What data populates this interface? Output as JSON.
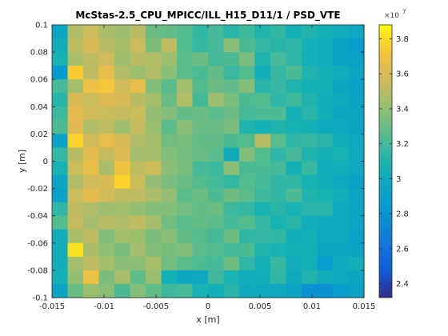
{
  "chart_data": {
    "type": "heatmap",
    "title": "McStas-2.5_CPU_MPICC/ILL_H15_D11/1 / PSD_VTE",
    "xlabel": "x [m]",
    "ylabel": "y [m]",
    "xlim": [
      -0.015,
      0.015
    ],
    "ylim": [
      -0.1,
      0.1
    ],
    "x_ticks": [
      "-0.015",
      "-0.01",
      "-0.005",
      "0",
      "0.005",
      "0.01",
      "0.015"
    ],
    "x_tick_values": [
      -0.015,
      -0.01,
      -0.005,
      0,
      0.005,
      0.01,
      0.015
    ],
    "y_ticks": [
      "0.1",
      "0.08",
      "0.06",
      "0.04",
      "0.02",
      "0",
      "-0.02",
      "-0.04",
      "-0.06",
      "-0.08",
      "-0.1"
    ],
    "y_tick_values": [
      0.1,
      0.08,
      0.06,
      0.04,
      0.02,
      0,
      -0.02,
      -0.04,
      -0.06,
      -0.08,
      -0.1
    ],
    "colorbar": {
      "min": 2.32,
      "max": 3.88,
      "exponent_label": "×10",
      "exponent": "7",
      "ticks": [
        "2.4",
        "2.6",
        "2.8",
        "3",
        "3.2",
        "3.4",
        "3.6",
        "3.8"
      ],
      "tick_values": [
        2.4,
        2.6,
        2.8,
        3.0,
        3.2,
        3.4,
        3.6,
        3.8
      ]
    },
    "rows": 20,
    "cols": 20,
    "values": [
      [
        2.96,
        3.48,
        3.56,
        3.46,
        3.42,
        3.5,
        3.3,
        3.28,
        3.24,
        3.14,
        3.2,
        3.12,
        3.18,
        3.1,
        3.14,
        3.06,
        3.1,
        3.06,
        3.02,
        2.98
      ],
      [
        3.02,
        3.52,
        3.6,
        3.5,
        3.44,
        3.56,
        3.34,
        3.52,
        3.24,
        3.16,
        3.2,
        3.38,
        3.22,
        3.16,
        3.12,
        3.14,
        3.06,
        3.02,
        2.92,
        2.88
      ],
      [
        3.08,
        3.46,
        3.52,
        3.58,
        3.42,
        3.5,
        3.48,
        3.42,
        3.26,
        3.3,
        3.2,
        3.22,
        3.34,
        3.1,
        3.2,
        3.14,
        3.06,
        3.02,
        2.94,
        2.92
      ],
      [
        2.86,
        3.76,
        3.52,
        3.66,
        3.48,
        3.42,
        3.48,
        3.38,
        3.26,
        3.22,
        3.28,
        3.18,
        3.24,
        3.04,
        3.16,
        3.22,
        3.1,
        3.06,
        3.02,
        2.96
      ],
      [
        3.2,
        3.44,
        3.68,
        3.72,
        3.58,
        3.66,
        3.36,
        3.26,
        3.44,
        3.24,
        3.3,
        3.28,
        3.36,
        3.12,
        3.16,
        3.1,
        3.06,
        3.06,
        2.96,
        2.92
      ],
      [
        3.12,
        3.6,
        3.56,
        3.62,
        3.6,
        3.5,
        3.44,
        3.3,
        3.48,
        3.2,
        3.42,
        3.34,
        3.22,
        3.24,
        3.14,
        3.18,
        3.1,
        3.04,
        3.0,
        2.94
      ],
      [
        3.18,
        3.64,
        3.58,
        3.56,
        3.54,
        3.56,
        3.4,
        3.36,
        3.28,
        3.3,
        3.26,
        3.3,
        3.2,
        3.22,
        3.22,
        3.06,
        3.12,
        3.04,
        2.96,
        2.96
      ],
      [
        3.22,
        3.62,
        3.48,
        3.52,
        3.42,
        3.54,
        3.42,
        3.26,
        3.38,
        3.3,
        3.3,
        3.34,
        3.1,
        3.06,
        3.1,
        3.08,
        3.06,
        3.0,
        2.98,
        2.94
      ],
      [
        2.92,
        3.78,
        3.58,
        3.66,
        3.6,
        3.48,
        3.44,
        3.32,
        3.34,
        3.28,
        3.28,
        3.22,
        3.24,
        3.5,
        3.26,
        3.14,
        3.16,
        3.12,
        3.04,
        2.98
      ],
      [
        3.16,
        3.5,
        3.64,
        3.54,
        3.62,
        3.44,
        3.44,
        3.36,
        3.32,
        3.3,
        3.26,
        3.0,
        3.36,
        3.24,
        3.14,
        3.2,
        3.1,
        3.06,
        3.08,
        3.0
      ],
      [
        3.08,
        3.56,
        3.66,
        3.46,
        3.7,
        3.52,
        3.56,
        3.38,
        3.34,
        3.2,
        3.18,
        3.38,
        3.22,
        3.22,
        3.2,
        3.06,
        3.16,
        3.02,
        3.04,
        2.98
      ],
      [
        2.96,
        3.48,
        3.58,
        3.6,
        3.78,
        3.56,
        3.4,
        3.34,
        3.3,
        3.24,
        3.2,
        3.16,
        3.24,
        3.2,
        3.14,
        3.14,
        3.08,
        3.04,
        2.98,
        2.92
      ],
      [
        2.92,
        3.56,
        3.64,
        3.58,
        3.52,
        3.52,
        3.46,
        3.4,
        3.26,
        3.3,
        3.22,
        3.3,
        3.26,
        3.18,
        3.14,
        3.22,
        3.1,
        3.08,
        3.04,
        2.96
      ],
      [
        3.14,
        3.52,
        3.48,
        3.42,
        3.44,
        3.4,
        3.36,
        3.36,
        3.32,
        3.28,
        3.3,
        3.18,
        3.16,
        3.08,
        3.12,
        3.08,
        3.12,
        3.12,
        3.0,
        2.96
      ],
      [
        3.24,
        3.54,
        3.44,
        3.5,
        3.48,
        3.52,
        3.44,
        3.32,
        3.26,
        3.28,
        3.26,
        3.2,
        3.24,
        3.16,
        3.08,
        3.12,
        3.02,
        3.0,
        3.0,
        2.96
      ],
      [
        3.02,
        3.46,
        3.52,
        3.36,
        3.44,
        3.42,
        3.34,
        3.38,
        3.28,
        3.24,
        3.2,
        3.3,
        3.14,
        3.16,
        3.14,
        3.04,
        3.06,
        2.98,
        3.0,
        2.92
      ],
      [
        3.02,
        3.82,
        3.46,
        3.4,
        3.34,
        3.44,
        3.36,
        3.34,
        3.36,
        3.26,
        3.24,
        3.2,
        3.22,
        3.1,
        3.08,
        3.06,
        3.06,
        2.96,
        2.96,
        2.94
      ],
      [
        3.04,
        3.44,
        3.52,
        3.44,
        3.38,
        3.38,
        3.44,
        3.32,
        3.26,
        3.22,
        3.2,
        3.3,
        3.14,
        3.06,
        3.16,
        3.02,
        3.06,
        2.88,
        3.0,
        3.04
      ],
      [
        3.06,
        3.4,
        3.68,
        3.34,
        3.46,
        3.28,
        3.42,
        3.06,
        2.96,
        2.98,
        3.18,
        3.08,
        3.02,
        3.04,
        3.14,
        3.0,
        3.1,
        3.02,
        2.98,
        2.96
      ],
      [
        2.94,
        3.3,
        3.42,
        3.38,
        3.22,
        3.36,
        3.28,
        3.18,
        3.2,
        3.08,
        3.04,
        3.12,
        3.0,
        3.0,
        2.98,
        2.94,
        2.8,
        2.8,
        2.88,
        2.92
      ]
    ]
  }
}
